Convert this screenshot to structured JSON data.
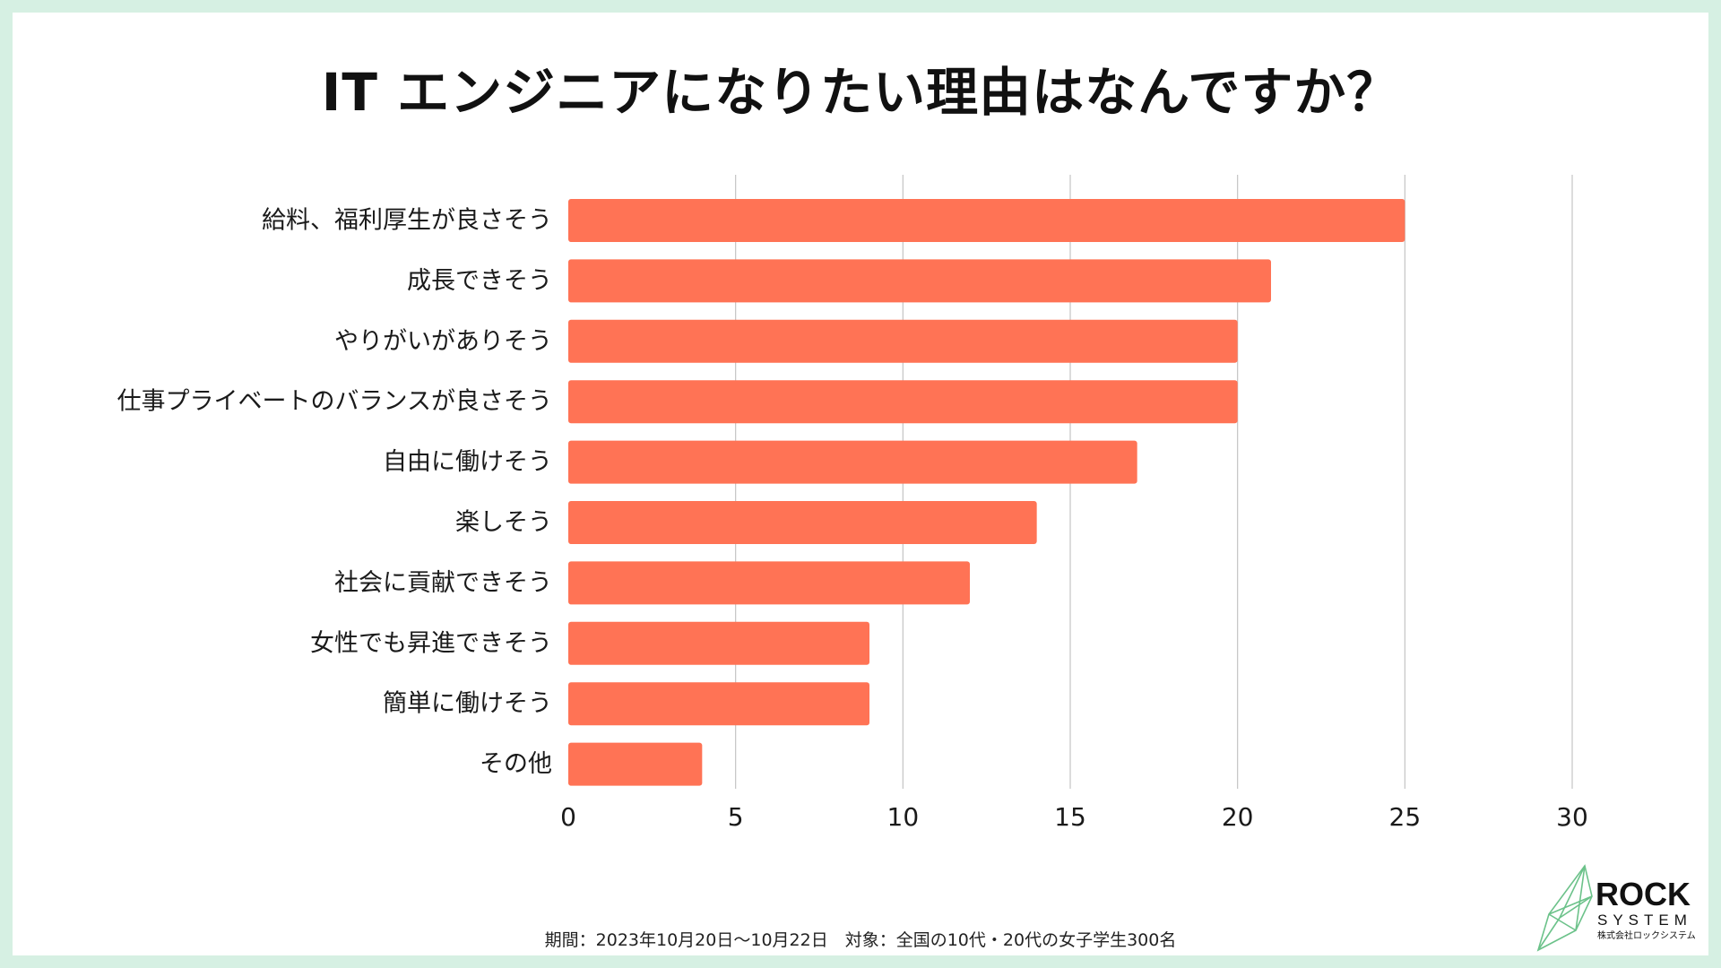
{
  "chart_data": {
    "type": "bar",
    "orientation": "horizontal",
    "title": "IT エンジニアになりたい理由はなんですか？",
    "categories": [
      "給料、福利厚生が良さそう",
      "成長できそう",
      "やりがいがありそう",
      "仕事プライベートのバランスが良さそう",
      "自由に働けそう",
      "楽しそう",
      "社会に貢献できそう",
      "女性でも昇進できそう",
      "簡単に働けそう",
      "その他"
    ],
    "values": [
      25,
      21,
      20,
      20,
      17,
      14,
      12,
      9,
      9,
      4
    ],
    "xlim": [
      0,
      30
    ],
    "xticks": [
      0,
      5,
      10,
      15,
      20,
      25,
      30
    ],
    "grid": "vertical",
    "bar_color": "#ff7355",
    "grid_color": "#c4c4c4"
  },
  "footnote": "期間：2023年10月20日〜10月22日　対象：全国の10代・20代の女子学生300名",
  "logo": {
    "name": "ROCK",
    "sub": "SYSTEM",
    "jp": "株式会社ロックシステム",
    "color": "#6cc28a"
  },
  "page": {
    "background": "#d6f0e3"
  }
}
